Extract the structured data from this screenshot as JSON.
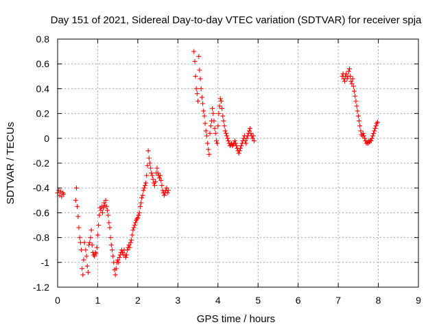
{
  "chart_data": {
    "type": "scatter",
    "title": "Day 151 of 2021, Sidereal Day-to-day VTEC variation (SDTVAR) for receiver spja",
    "xlabel": "GPS time / hours",
    "ylabel": "SDTVAR / TECUs",
    "xlim": [
      0,
      9
    ],
    "ylim": [
      -1.2,
      0.8
    ],
    "grid": true,
    "marker": "plus",
    "color": "#ff0000",
    "x_ticks": [
      "0",
      "1",
      "2",
      "3",
      "4",
      "5",
      "6",
      "7",
      "8",
      "9"
    ],
    "y_ticks": [
      "-1.2",
      "-1",
      "-0.8",
      "-0.6",
      "-0.4",
      "-0.2",
      "0",
      "0.2",
      "0.4",
      "0.6",
      "0.8"
    ],
    "series": [
      {
        "name": "SDTVAR",
        "points": [
          [
            0.0,
            -0.44
          ],
          [
            0.03,
            -0.42
          ],
          [
            0.05,
            -0.46
          ],
          [
            0.08,
            -0.43
          ],
          [
            0.1,
            -0.47
          ],
          [
            0.13,
            -0.44
          ],
          [
            0.15,
            -0.45
          ],
          [
            0.45,
            -0.5
          ],
          [
            0.47,
            -0.4
          ],
          [
            0.49,
            -0.55
          ],
          [
            0.51,
            -0.63
          ],
          [
            0.53,
            -0.72
          ],
          [
            0.55,
            -0.8
          ],
          [
            0.57,
            -0.84
          ],
          [
            0.59,
            -0.9
          ],
          [
            0.61,
            -1.05
          ],
          [
            0.63,
            -1.1
          ],
          [
            0.65,
            -0.98
          ],
          [
            0.67,
            -0.84
          ],
          [
            0.7,
            -0.9
          ],
          [
            0.72,
            -0.95
          ],
          [
            0.74,
            -1.03
          ],
          [
            0.76,
            -1.08
          ],
          [
            0.78,
            -0.86
          ],
          [
            0.8,
            -0.84
          ],
          [
            0.82,
            -0.8
          ],
          [
            0.84,
            -0.74
          ],
          [
            0.86,
            -0.86
          ],
          [
            0.88,
            -0.92
          ],
          [
            0.9,
            -0.94
          ],
          [
            0.92,
            -0.95
          ],
          [
            0.94,
            -0.92
          ],
          [
            0.96,
            -0.93
          ],
          [
            0.98,
            -0.88
          ],
          [
            1.0,
            -0.78
          ],
          [
            1.02,
            -0.7
          ],
          [
            1.04,
            -0.62
          ],
          [
            1.06,
            -0.56
          ],
          [
            1.08,
            -0.58
          ],
          [
            1.1,
            -0.55
          ],
          [
            1.12,
            -0.6
          ],
          [
            1.14,
            -0.56
          ],
          [
            1.16,
            -0.52
          ],
          [
            1.18,
            -0.54
          ],
          [
            1.2,
            -0.5
          ],
          [
            1.22,
            -0.55
          ],
          [
            1.24,
            -0.58
          ],
          [
            1.26,
            -0.62
          ],
          [
            1.28,
            -0.68
          ],
          [
            1.3,
            -0.72
          ],
          [
            1.32,
            -0.8
          ],
          [
            1.34,
            -0.86
          ],
          [
            1.36,
            -0.9
          ],
          [
            1.38,
            -0.95
          ],
          [
            1.4,
            -1.0
          ],
          [
            1.42,
            -1.06
          ],
          [
            1.44,
            -1.1
          ],
          [
            1.46,
            -1.05
          ],
          [
            1.48,
            -1.0
          ],
          [
            1.5,
            -0.98
          ],
          [
            1.52,
            -1.0
          ],
          [
            1.54,
            -0.96
          ],
          [
            1.56,
            -0.94
          ],
          [
            1.58,
            -0.92
          ],
          [
            1.6,
            -0.9
          ],
          [
            1.62,
            -0.92
          ],
          [
            1.64,
            -0.94
          ],
          [
            1.66,
            -0.9
          ],
          [
            1.68,
            -0.94
          ],
          [
            1.7,
            -0.96
          ],
          [
            1.72,
            -0.94
          ],
          [
            1.74,
            -0.9
          ],
          [
            1.76,
            -0.88
          ],
          [
            1.78,
            -0.86
          ],
          [
            1.8,
            -0.88
          ],
          [
            1.82,
            -0.84
          ],
          [
            1.84,
            -0.82
          ],
          [
            1.86,
            -0.78
          ],
          [
            1.88,
            -0.74
          ],
          [
            1.9,
            -0.72
          ],
          [
            1.92,
            -0.7
          ],
          [
            1.94,
            -0.68
          ],
          [
            1.96,
            -0.66
          ],
          [
            1.98,
            -0.65
          ],
          [
            2.0,
            -0.64
          ],
          [
            2.02,
            -0.62
          ],
          [
            2.04,
            -0.6
          ],
          [
            2.06,
            -0.55
          ],
          [
            2.08,
            -0.52
          ],
          [
            2.1,
            -0.48
          ],
          [
            2.12,
            -0.46
          ],
          [
            2.14,
            -0.42
          ],
          [
            2.16,
            -0.4
          ],
          [
            2.18,
            -0.38
          ],
          [
            2.2,
            -0.36
          ],
          [
            2.22,
            -0.3
          ],
          [
            2.24,
            -0.22
          ],
          [
            2.26,
            -0.1
          ],
          [
            2.28,
            -0.16
          ],
          [
            2.3,
            -0.2
          ],
          [
            2.32,
            -0.24
          ],
          [
            2.34,
            -0.28
          ],
          [
            2.36,
            -0.3
          ],
          [
            2.38,
            -0.33
          ],
          [
            2.4,
            -0.36
          ],
          [
            2.42,
            -0.38
          ],
          [
            2.44,
            -0.35
          ],
          [
            2.46,
            -0.28
          ],
          [
            2.48,
            -0.24
          ],
          [
            2.5,
            -0.28
          ],
          [
            2.52,
            -0.3
          ],
          [
            2.54,
            -0.32
          ],
          [
            2.56,
            -0.3
          ],
          [
            2.58,
            -0.34
          ],
          [
            2.6,
            -0.38
          ],
          [
            2.62,
            -0.42
          ],
          [
            2.64,
            -0.44
          ],
          [
            2.66,
            -0.46
          ],
          [
            2.68,
            -0.44
          ],
          [
            2.7,
            -0.42
          ],
          [
            2.72,
            -0.4
          ],
          [
            2.74,
            -0.44
          ],
          [
            2.76,
            -0.42
          ],
          [
            3.4,
            0.7
          ],
          [
            3.42,
            0.62
          ],
          [
            3.44,
            0.5
          ],
          [
            3.46,
            0.4
          ],
          [
            3.48,
            0.36
          ],
          [
            3.5,
            0.3
          ],
          [
            3.52,
            0.66
          ],
          [
            3.54,
            0.55
          ],
          [
            3.56,
            0.48
          ],
          [
            3.58,
            0.4
          ],
          [
            3.6,
            0.33
          ],
          [
            3.62,
            0.28
          ],
          [
            3.64,
            0.22
          ],
          [
            3.66,
            0.18
          ],
          [
            3.68,
            0.12
          ],
          [
            3.7,
            0.06
          ],
          [
            3.72,
            0.02
          ],
          [
            3.74,
            -0.04
          ],
          [
            3.76,
            -0.09
          ],
          [
            3.78,
            -0.13
          ],
          [
            3.8,
            0.04
          ],
          [
            3.82,
            0.1
          ],
          [
            3.84,
            0.14
          ],
          [
            3.86,
            0.24
          ],
          [
            3.88,
            0.2
          ],
          [
            3.9,
            0.14
          ],
          [
            3.92,
            0.08
          ],
          [
            3.94,
            0.04
          ],
          [
            3.96,
            -0.02
          ],
          [
            3.98,
            -0.04
          ],
          [
            4.0,
            0.1
          ],
          [
            4.02,
            0.2
          ],
          [
            4.04,
            0.26
          ],
          [
            4.06,
            0.32
          ],
          [
            4.08,
            0.3
          ],
          [
            4.1,
            0.24
          ],
          [
            4.12,
            0.18
          ],
          [
            4.14,
            0.14
          ],
          [
            4.16,
            0.1
          ],
          [
            4.18,
            0.06
          ],
          [
            4.2,
            0.04
          ],
          [
            4.22,
            0.02
          ],
          [
            4.24,
            0.0
          ],
          [
            4.26,
            -0.02
          ],
          [
            4.28,
            -0.04
          ],
          [
            4.3,
            -0.06
          ],
          [
            4.32,
            -0.05
          ],
          [
            4.34,
            -0.04
          ],
          [
            4.36,
            -0.06
          ],
          [
            4.38,
            -0.05
          ],
          [
            4.4,
            -0.04
          ],
          [
            4.42,
            -0.02
          ],
          [
            4.44,
            -0.04
          ],
          [
            4.46,
            -0.06
          ],
          [
            4.48,
            -0.08
          ],
          [
            4.5,
            -0.1
          ],
          [
            4.52,
            -0.12
          ],
          [
            4.54,
            -0.1
          ],
          [
            4.56,
            -0.08
          ],
          [
            4.58,
            -0.06
          ],
          [
            4.6,
            -0.04
          ],
          [
            4.62,
            -0.02
          ],
          [
            4.64,
            0.0
          ],
          [
            4.66,
            0.02
          ],
          [
            4.68,
            -0.02
          ],
          [
            4.7,
            -0.04
          ],
          [
            4.72,
            0.0
          ],
          [
            4.74,
            0.02
          ],
          [
            4.76,
            0.04
          ],
          [
            4.78,
            0.06
          ],
          [
            4.8,
            0.08
          ],
          [
            4.82,
            0.04
          ],
          [
            4.84,
            0.02
          ],
          [
            4.86,
            0.0
          ],
          [
            4.88,
            0.02
          ],
          [
            4.9,
            -0.02
          ],
          [
            7.1,
            0.5
          ],
          [
            7.12,
            0.52
          ],
          [
            7.14,
            0.48
          ],
          [
            7.16,
            0.46
          ],
          [
            7.18,
            0.5
          ],
          [
            7.2,
            0.52
          ],
          [
            7.22,
            0.48
          ],
          [
            7.24,
            0.5
          ],
          [
            7.26,
            0.54
          ],
          [
            7.28,
            0.56
          ],
          [
            7.3,
            0.5
          ],
          [
            7.32,
            0.46
          ],
          [
            7.34,
            0.44
          ],
          [
            7.36,
            0.48
          ],
          [
            7.38,
            0.42
          ],
          [
            7.4,
            0.38
          ],
          [
            7.42,
            0.34
          ],
          [
            7.44,
            0.3
          ],
          [
            7.46,
            0.26
          ],
          [
            7.48,
            0.22
          ],
          [
            7.5,
            0.18
          ],
          [
            7.52,
            0.14
          ],
          [
            7.54,
            0.1
          ],
          [
            7.56,
            0.06
          ],
          [
            7.58,
            0.03
          ],
          [
            7.6,
            0.02
          ],
          [
            7.62,
            0.04
          ],
          [
            7.64,
            0.02
          ],
          [
            7.66,
            0.0
          ],
          [
            7.68,
            -0.02
          ],
          [
            7.7,
            -0.04
          ],
          [
            7.72,
            -0.03
          ],
          [
            7.74,
            -0.04
          ],
          [
            7.76,
            -0.02
          ],
          [
            7.78,
            -0.03
          ],
          [
            7.8,
            -0.02
          ],
          [
            7.82,
            -0.02
          ],
          [
            7.84,
            0.0
          ],
          [
            7.86,
            0.02
          ],
          [
            7.88,
            0.04
          ],
          [
            7.9,
            0.06
          ],
          [
            7.92,
            0.08
          ],
          [
            7.94,
            0.1
          ],
          [
            7.96,
            0.12
          ],
          [
            7.98,
            0.13
          ]
        ]
      }
    ]
  }
}
